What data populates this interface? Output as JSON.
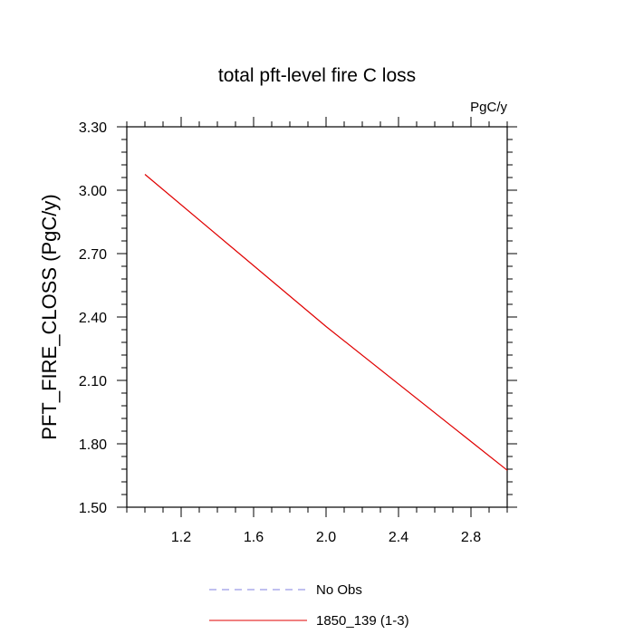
{
  "chart_data": {
    "type": "line",
    "title": "total pft-level fire C loss",
    "units": "PgC/y",
    "xlabel": "",
    "ylabel": "PFT_FIRE_CLOSS  (PgC/y)",
    "xlim": [
      0.9,
      3.0
    ],
    "ylim": [
      1.5,
      3.3
    ],
    "xticks": [
      1.2,
      1.6,
      2.0,
      2.4,
      2.8
    ],
    "xtick_labels": [
      "1.2",
      "1.6",
      "2.0",
      "2.4",
      "2.8"
    ],
    "yticks": [
      1.5,
      1.8,
      2.1,
      2.4,
      2.7,
      3.0,
      3.3
    ],
    "ytick_labels": [
      "1.50",
      "1.80",
      "2.10",
      "2.40",
      "2.70",
      "3.00",
      "3.30"
    ],
    "grid": false,
    "legend_position": "bottom-center",
    "series": [
      {
        "name": "No Obs",
        "color": "#8080e0",
        "dash": "dashed",
        "x": [],
        "y": []
      },
      {
        "name": "1850_139 (1-3)",
        "color": "#e00000",
        "dash": "solid",
        "x": [
          1.0,
          2.0,
          3.0
        ],
        "y": [
          3.075,
          2.355,
          1.675
        ]
      }
    ]
  }
}
